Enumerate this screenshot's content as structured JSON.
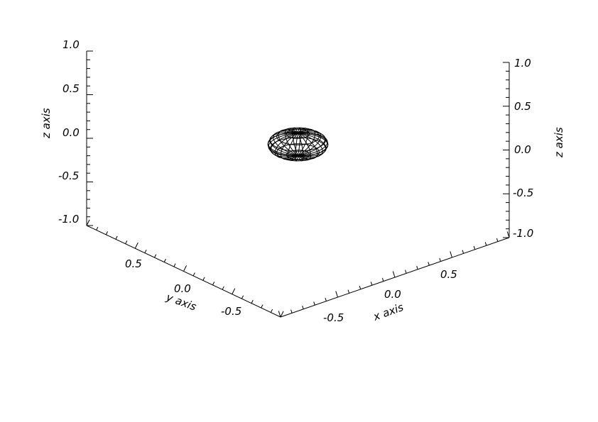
{
  "chart_data": {
    "type": "wireframe-surface-3d",
    "surface": {
      "shape": "ellipsoid",
      "center": [
        0.0,
        0.0,
        0.0
      ],
      "radii": [
        0.2,
        0.2,
        0.13
      ],
      "meridians": 24,
      "parallels": 8
    },
    "axes": {
      "x": {
        "label": "x axis",
        "range": [
          -1.0,
          1.0
        ],
        "ticks": [
          "-0.5",
          "0.0",
          "0.5"
        ]
      },
      "y": {
        "label": "y axis",
        "range": [
          -1.0,
          1.0
        ],
        "ticks": [
          "0.5",
          "0.0",
          "-0.5"
        ]
      },
      "z_left": {
        "label": "z axis",
        "range": [
          -1.0,
          1.0
        ],
        "ticks": [
          "1.0",
          "0.5",
          "0.0",
          "-0.5",
          "-1.0"
        ]
      },
      "z_right": {
        "label": "z axis",
        "range": [
          -1.0,
          1.0
        ],
        "ticks": [
          "1.0",
          "0.5",
          "0.0",
          "-0.5",
          "-1.0"
        ]
      }
    },
    "line_color": "#000000",
    "background": "#ffffff"
  }
}
